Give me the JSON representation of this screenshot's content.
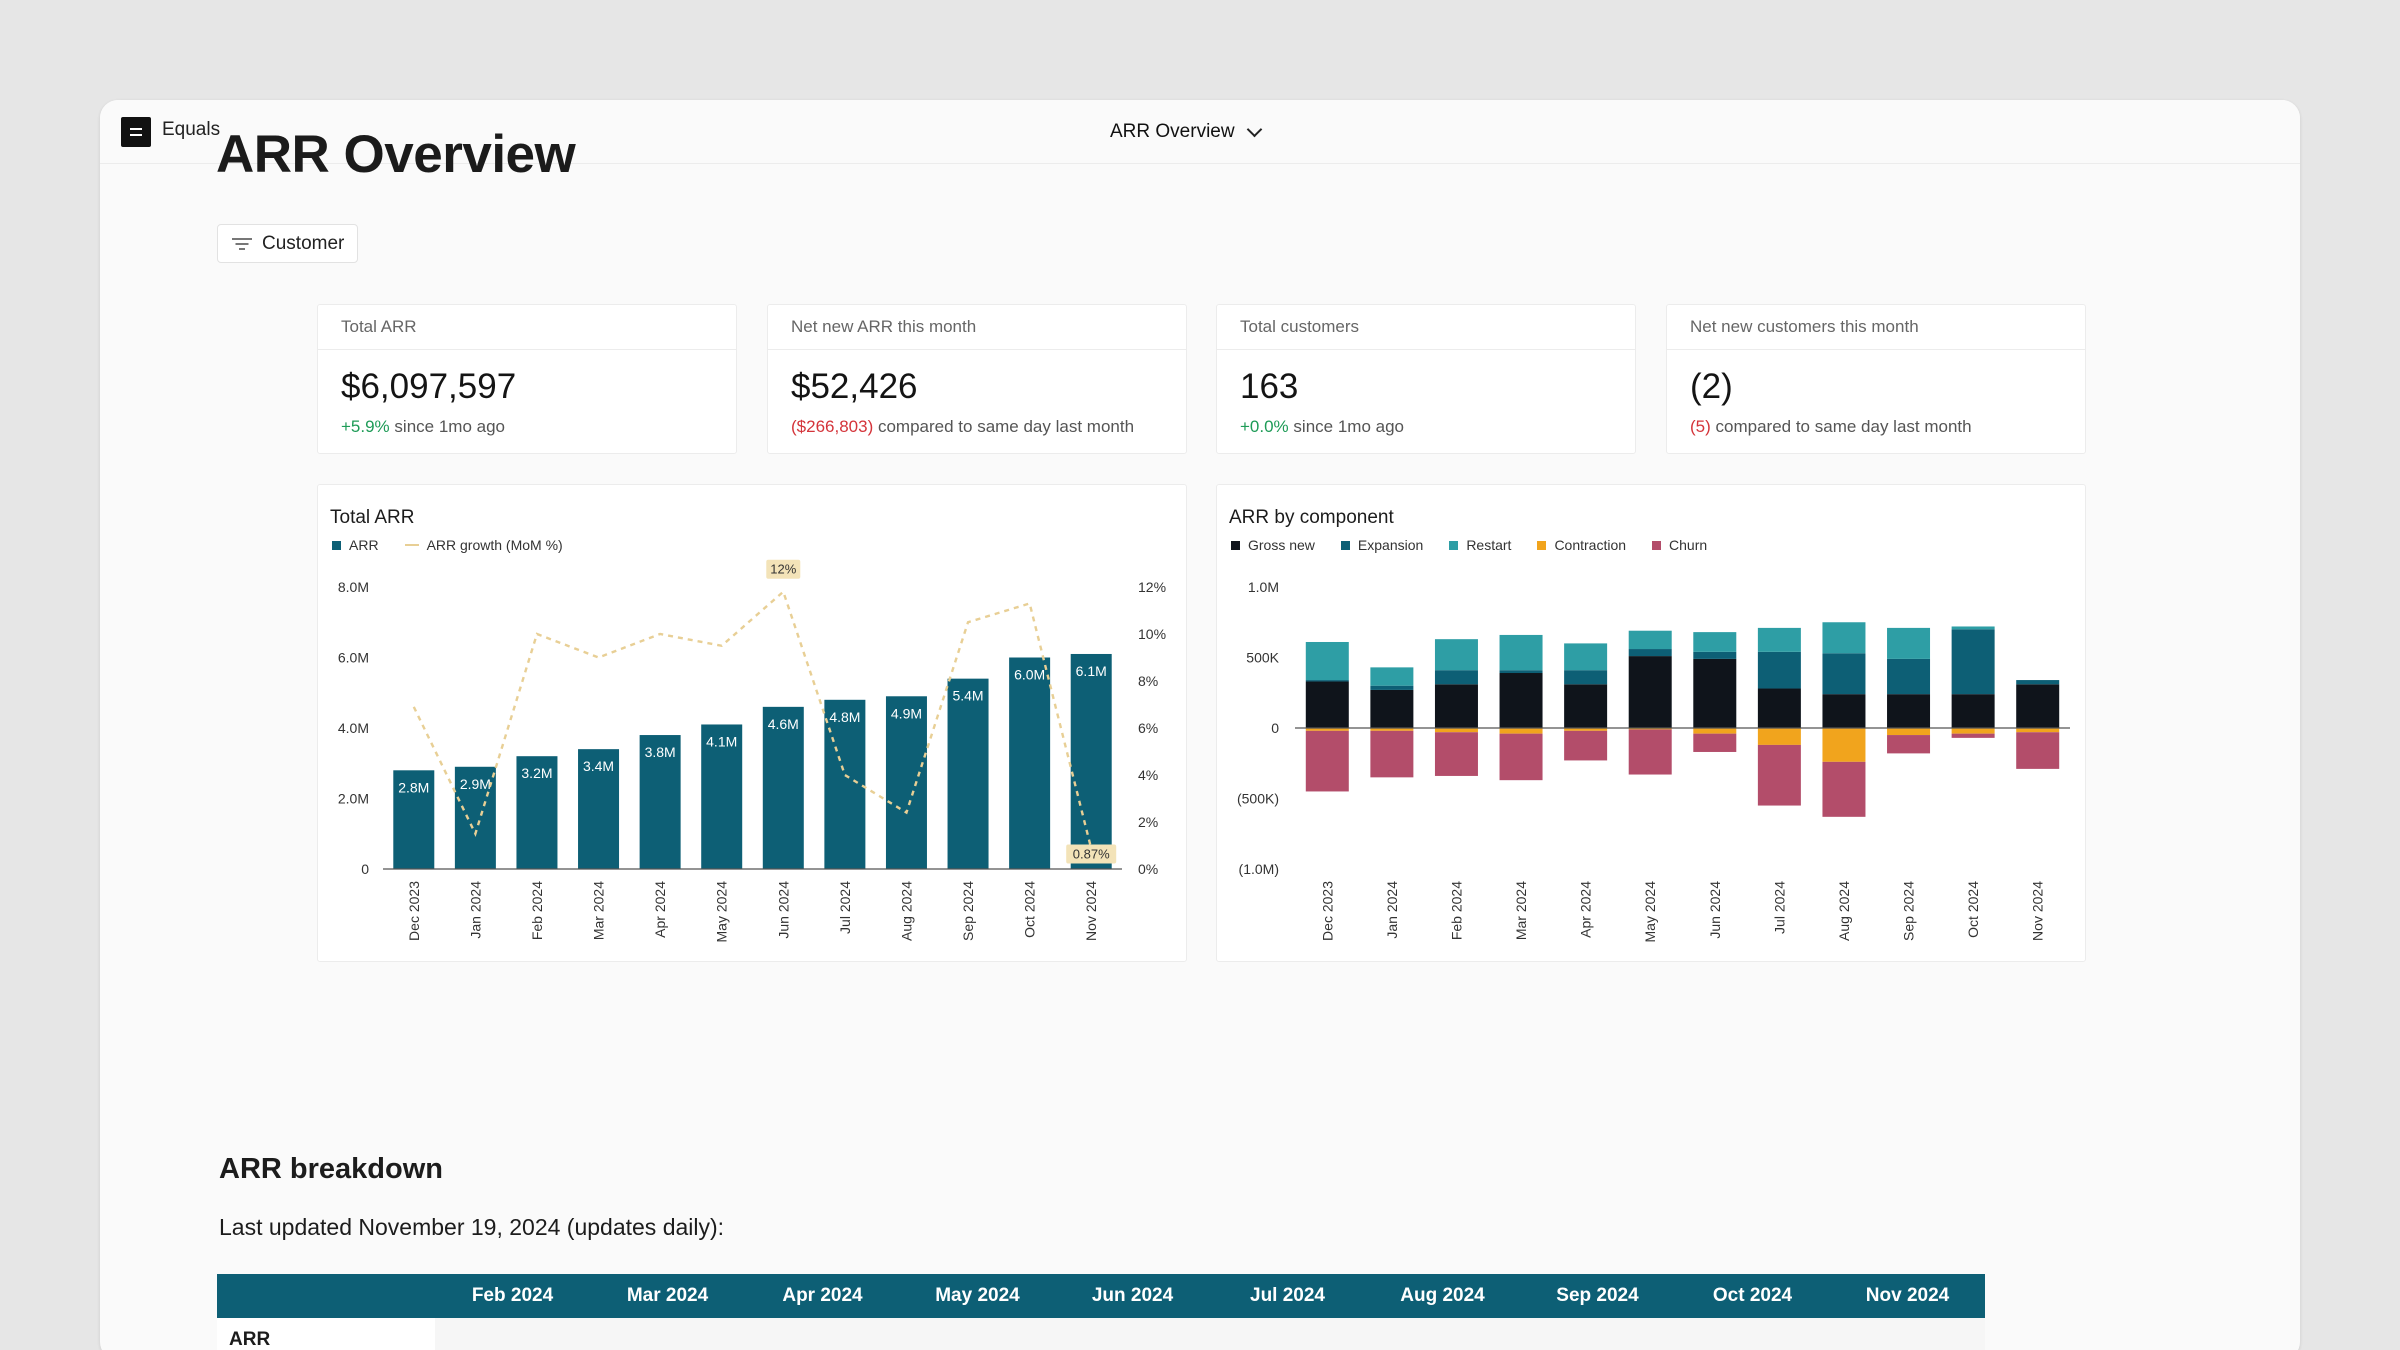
{
  "app": {
    "name": "Equals",
    "document_title": "ARR Overview"
  },
  "page": {
    "title": "ARR Overview",
    "filter_label": "Customer"
  },
  "kpis": [
    {
      "label": "Total ARR",
      "value": "$6,097,597",
      "delta": "+5.9%",
      "delta_kind": "positive",
      "note": "since 1mo ago"
    },
    {
      "label": "Net new ARR this month",
      "value": "$52,426",
      "delta": "($266,803)",
      "delta_kind": "negative",
      "note": "compared to same day last month"
    },
    {
      "label": "Total customers",
      "value": "163",
      "delta": "+0.0%",
      "delta_kind": "positive",
      "note": "since 1mo ago"
    },
    {
      "label": "Net new customers this month",
      "value": "(2)",
      "delta": "(5)",
      "delta_kind": "negative",
      "note": "compared to same day last month"
    }
  ],
  "chart_data": [
    {
      "type": "bar",
      "title": "Total ARR",
      "categories": [
        "Dec 2023",
        "Jan 2024",
        "Feb 2024",
        "Mar 2024",
        "Apr 2024",
        "May 2024",
        "Jun 2024",
        "Jul 2024",
        "Aug 2024",
        "Sep 2024",
        "Oct 2024",
        "Nov 2024"
      ],
      "series": [
        {
          "name": "ARR",
          "type": "bar",
          "color": "#0d5f75",
          "axis": "left",
          "values": [
            2.8,
            2.9,
            3.2,
            3.4,
            3.8,
            4.1,
            4.6,
            4.8,
            4.9,
            5.4,
            6.0,
            6.1
          ],
          "labels": [
            "2.8M",
            "2.9M",
            "3.2M",
            "3.4M",
            "3.8M",
            "4.1M",
            "4.6M",
            "4.8M",
            "4.9M",
            "5.4M",
            "6.0M",
            "6.1M"
          ]
        },
        {
          "name": "ARR growth (MoM %)",
          "type": "line",
          "dashed": true,
          "color": "#e8cf95",
          "axis": "right",
          "values": [
            6.9,
            1.5,
            10.0,
            9.0,
            10.0,
            9.5,
            11.8,
            4.0,
            2.4,
            10.5,
            11.3,
            0.87
          ]
        }
      ],
      "annotations": [
        {
          "category": "Jun 2024",
          "text": "12%"
        },
        {
          "category": "Nov 2024",
          "text": "0.87%"
        }
      ],
      "y_left": {
        "range": [
          0,
          8
        ],
        "ticks": [
          0,
          2,
          4,
          6,
          8
        ],
        "tick_labels": [
          "0",
          "2.0M",
          "4.0M",
          "6.0M",
          "8.0M"
        ]
      },
      "y_right": {
        "range": [
          0,
          12
        ],
        "ticks": [
          0,
          2,
          4,
          6,
          8,
          10,
          12
        ],
        "tick_labels": [
          "0%",
          "2%",
          "4%",
          "6%",
          "8%",
          "10%",
          "12%"
        ]
      },
      "grid": false,
      "legend": "top-left"
    },
    {
      "type": "bar",
      "stacked": true,
      "title": "ARR by component",
      "categories": [
        "Dec 2023",
        "Jan 2024",
        "Feb 2024",
        "Mar 2024",
        "Apr 2024",
        "May 2024",
        "Jun 2024",
        "Jul 2024",
        "Aug 2024",
        "Sep 2024",
        "Oct 2024",
        "Nov 2024"
      ],
      "series": [
        {
          "name": "Gross new",
          "color": "#0f141b",
          "values": [
            0.33,
            0.27,
            0.31,
            0.39,
            0.31,
            0.51,
            0.49,
            0.28,
            0.24,
            0.24,
            0.24,
            0.31
          ]
        },
        {
          "name": "Expansion",
          "color": "#0d5f75",
          "values": [
            0.01,
            0.03,
            0.1,
            0.02,
            0.1,
            0.05,
            0.05,
            0.26,
            0.29,
            0.25,
            0.46,
            0.03
          ]
        },
        {
          "name": "Restart",
          "color": "#2e9ea5",
          "values": [
            0.27,
            0.13,
            0.22,
            0.25,
            0.19,
            0.13,
            0.14,
            0.17,
            0.22,
            0.22,
            0.02,
            0.0
          ]
        },
        {
          "name": "Contraction",
          "color": "#f1a41d",
          "values": [
            -0.02,
            -0.02,
            -0.03,
            -0.04,
            -0.02,
            -0.01,
            -0.04,
            -0.12,
            -0.24,
            -0.05,
            -0.04,
            -0.03
          ]
        },
        {
          "name": "Churn",
          "color": "#b34d6a",
          "values": [
            -0.43,
            -0.33,
            -0.31,
            -0.33,
            -0.21,
            -0.32,
            -0.13,
            -0.43,
            -0.39,
            -0.13,
            -0.03,
            -0.26
          ]
        }
      ],
      "y": {
        "range": [
          -1.0,
          1.0
        ],
        "ticks": [
          -1.0,
          -0.5,
          0,
          0.5,
          1.0
        ],
        "tick_labels": [
          "(1.0M)",
          "(500K)",
          "0",
          "500K",
          "1.0M"
        ]
      },
      "grid": false,
      "legend": "top-left"
    }
  ],
  "breakdown": {
    "title": "ARR breakdown",
    "updated": "Last updated November 19, 2024 (updates daily):",
    "columns": [
      "Feb 2024",
      "Mar 2024",
      "Apr 2024",
      "May 2024",
      "Jun 2024",
      "Jul 2024",
      "Aug 2024",
      "Sep 2024",
      "Oct 2024",
      "Nov 2024"
    ],
    "first_row_label": "ARR"
  }
}
